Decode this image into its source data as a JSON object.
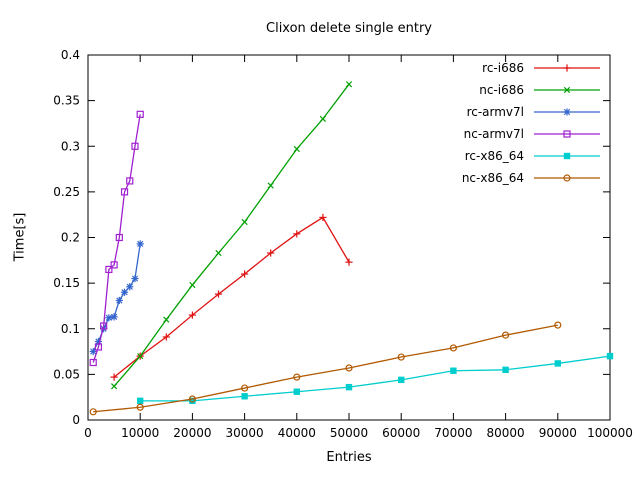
{
  "chart_data": {
    "type": "line",
    "title": "Clixon delete single entry",
    "xlabel": "Entries",
    "ylabel": "Time[s]",
    "xlim": [
      0,
      100000
    ],
    "ylim": [
      0,
      0.4
    ],
    "grid": false,
    "legend_position": "top-right-inside",
    "xticks": {
      "values": [
        0,
        10000,
        20000,
        30000,
        40000,
        50000,
        60000,
        70000,
        80000,
        90000,
        100000
      ],
      "labels": [
        "0",
        "10000",
        "20000",
        "30000",
        "40000",
        "50000",
        "60000",
        "70000",
        "80000",
        "90000",
        "100000"
      ]
    },
    "yticks": {
      "values": [
        0,
        0.05,
        0.1,
        0.15,
        0.2,
        0.25,
        0.3,
        0.35,
        0.4
      ],
      "labels": [
        "0",
        "0.05",
        "0.1",
        "0.15",
        "0.2",
        "0.25",
        "0.3",
        "0.35",
        "0.4"
      ]
    },
    "series": [
      {
        "name": "rc-i686",
        "color": "#e01010",
        "marker": "plus",
        "x": [
          5000,
          10000,
          15000,
          20000,
          25000,
          30000,
          35000,
          40000,
          45000,
          50000
        ],
        "y": [
          0.047,
          0.07,
          0.091,
          0.115,
          0.138,
          0.16,
          0.183,
          0.204,
          0.222,
          0.173
        ]
      },
      {
        "name": "nc-i686",
        "color": "#00a000",
        "marker": "cross",
        "x": [
          5000,
          10000,
          15000,
          20000,
          25000,
          30000,
          35000,
          40000,
          45000,
          50000
        ],
        "y": [
          0.037,
          0.07,
          0.11,
          0.148,
          0.183,
          0.217,
          0.257,
          0.297,
          0.33,
          0.368
        ]
      },
      {
        "name": "rc-armv7l",
        "color": "#3465cd",
        "marker": "asterisk",
        "x": [
          1000,
          2000,
          3000,
          4000,
          5000,
          6000,
          7000,
          8000,
          9000,
          10000
        ],
        "y": [
          0.075,
          0.086,
          0.1,
          0.112,
          0.113,
          0.131,
          0.14,
          0.146,
          0.155,
          0.193
        ]
      },
      {
        "name": "nc-armv7l",
        "color": "#a020d0",
        "marker": "square-open",
        "x": [
          1000,
          2000,
          3000,
          4000,
          5000,
          6000,
          7000,
          8000,
          9000,
          10000
        ],
        "y": [
          0.063,
          0.08,
          0.103,
          0.165,
          0.17,
          0.2,
          0.25,
          0.262,
          0.3,
          0.335
        ]
      },
      {
        "name": "rc-x86_64",
        "color": "#00cdcd",
        "marker": "square-filled",
        "x": [
          10000,
          20000,
          30000,
          40000,
          50000,
          60000,
          70000,
          80000,
          90000,
          100000
        ],
        "y": [
          0.021,
          0.021,
          0.026,
          0.031,
          0.036,
          0.044,
          0.054,
          0.055,
          0.062,
          0.07
        ]
      },
      {
        "name": "nc-x86_64",
        "color": "#b25900",
        "marker": "circle-open",
        "x": [
          1000,
          10000,
          20000,
          30000,
          40000,
          50000,
          60000,
          70000,
          80000,
          90000
        ],
        "y": [
          0.009,
          0.014,
          0.023,
          0.035,
          0.047,
          0.057,
          0.069,
          0.079,
          0.093,
          0.104
        ]
      }
    ]
  }
}
